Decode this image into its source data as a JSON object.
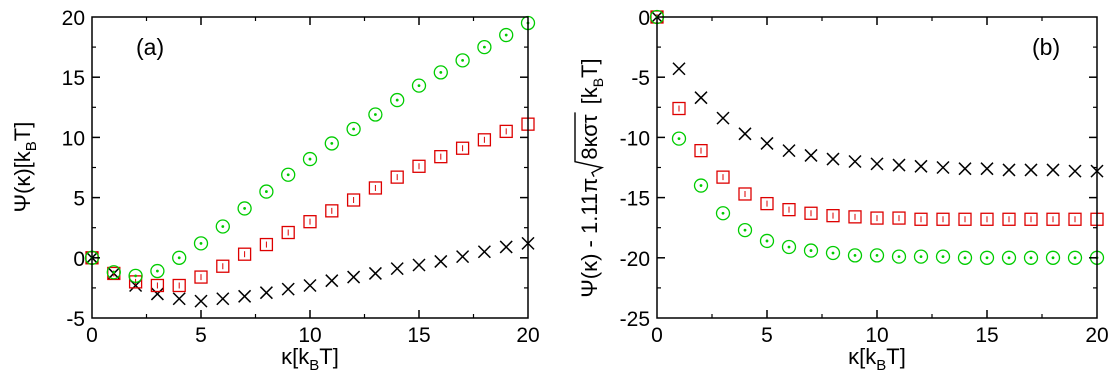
{
  "chart_data": [
    {
      "type": "scatter",
      "panel_label": "(a)",
      "xlabel": {
        "main": "κ[k",
        "sub": "B",
        "tail": "T]"
      },
      "ylabel": {
        "main": "Ψ(κ)[k",
        "sub": "B",
        "tail": "T]"
      },
      "xlim": [
        0,
        20
      ],
      "ylim": [
        -5,
        20
      ],
      "xticks": [
        "0",
        "5",
        "10",
        "15",
        "20"
      ],
      "yticks": [
        "-5",
        "0",
        "5",
        "10",
        "15",
        "20"
      ],
      "grid": false,
      "series": [
        {
          "marker": "x",
          "color": "#000000",
          "x": [
            0,
            1,
            2,
            3,
            4,
            5,
            6,
            7,
            8,
            9,
            10,
            11,
            12,
            13,
            14,
            15,
            16,
            17,
            18,
            19,
            20
          ],
          "y": [
            0,
            -1.3,
            -2.3,
            -3.0,
            -3.4,
            -3.6,
            -3.4,
            -3.2,
            -2.9,
            -2.6,
            -2.3,
            -1.9,
            -1.6,
            -1.3,
            -0.9,
            -0.6,
            -0.3,
            0.1,
            0.5,
            0.9,
            1.2
          ]
        },
        {
          "marker": "square",
          "color": "#dd0000",
          "x": [
            0,
            1,
            2,
            3,
            4,
            5,
            6,
            7,
            8,
            9,
            10,
            11,
            12,
            13,
            14,
            15,
            16,
            17,
            18,
            19,
            20
          ],
          "y": [
            0,
            -1.3,
            -2.0,
            -2.3,
            -2.3,
            -1.6,
            -0.7,
            0.3,
            1.1,
            2.1,
            3.0,
            3.9,
            4.8,
            5.8,
            6.7,
            7.6,
            8.4,
            9.1,
            9.8,
            10.5,
            11.1
          ]
        },
        {
          "marker": "circle",
          "color": "#00cc00",
          "x": [
            0,
            1,
            2,
            3,
            4,
            5,
            6,
            7,
            8,
            9,
            10,
            11,
            12,
            13,
            14,
            15,
            16,
            17,
            18,
            19,
            20
          ],
          "y": [
            0,
            -1.2,
            -1.5,
            -1.1,
            0.0,
            1.2,
            2.6,
            4.1,
            5.5,
            6.9,
            8.2,
            9.5,
            10.7,
            11.9,
            13.1,
            14.3,
            15.4,
            16.4,
            17.5,
            18.5,
            19.5
          ]
        }
      ]
    },
    {
      "type": "scatter",
      "panel_label": "(b)",
      "xlabel": {
        "main": "κ[k",
        "sub": "B",
        "tail": "T]"
      },
      "ylabel": {
        "prefix": "Ψ(κ) - 1.11π",
        "radical": "8κστ",
        "units": "[k",
        "sub": "B",
        "tail": "T]"
      },
      "xlim": [
        0,
        20
      ],
      "ylim": [
        -25,
        0
      ],
      "xticks": [
        "0",
        "5",
        "10",
        "15",
        "20"
      ],
      "yticks": [
        "-25",
        "-20",
        "-15",
        "-10",
        "-5",
        "0"
      ],
      "grid": false,
      "series": [
        {
          "marker": "x",
          "color": "#000000",
          "x": [
            0,
            1,
            2,
            3,
            4,
            5,
            6,
            7,
            8,
            9,
            10,
            11,
            12,
            13,
            14,
            15,
            16,
            17,
            18,
            19,
            20
          ],
          "y": [
            0,
            -4.3,
            -6.7,
            -8.4,
            -9.7,
            -10.5,
            -11.1,
            -11.5,
            -11.8,
            -12.0,
            -12.2,
            -12.3,
            -12.4,
            -12.5,
            -12.6,
            -12.6,
            -12.7,
            -12.7,
            -12.7,
            -12.8,
            -12.8
          ]
        },
        {
          "marker": "square",
          "color": "#dd0000",
          "x": [
            0,
            1,
            2,
            3,
            4,
            5,
            6,
            7,
            8,
            9,
            10,
            11,
            12,
            13,
            14,
            15,
            16,
            17,
            18,
            19,
            20
          ],
          "y": [
            0,
            -7.6,
            -11.1,
            -13.3,
            -14.7,
            -15.5,
            -16.0,
            -16.3,
            -16.5,
            -16.6,
            -16.7,
            -16.7,
            -16.8,
            -16.8,
            -16.8,
            -16.8,
            -16.8,
            -16.8,
            -16.8,
            -16.8,
            -16.8
          ]
        },
        {
          "marker": "circle",
          "color": "#00cc00",
          "x": [
            0,
            1,
            2,
            3,
            4,
            5,
            6,
            7,
            8,
            9,
            10,
            11,
            12,
            13,
            14,
            15,
            16,
            17,
            18,
            19,
            20
          ],
          "y": [
            0,
            -10.1,
            -14.0,
            -16.3,
            -17.7,
            -18.6,
            -19.1,
            -19.4,
            -19.6,
            -19.8,
            -19.8,
            -19.9,
            -19.9,
            -19.9,
            -20.0,
            -20.0,
            -20.0,
            -20.0,
            -20.0,
            -20.0,
            -20.0
          ]
        }
      ]
    }
  ]
}
